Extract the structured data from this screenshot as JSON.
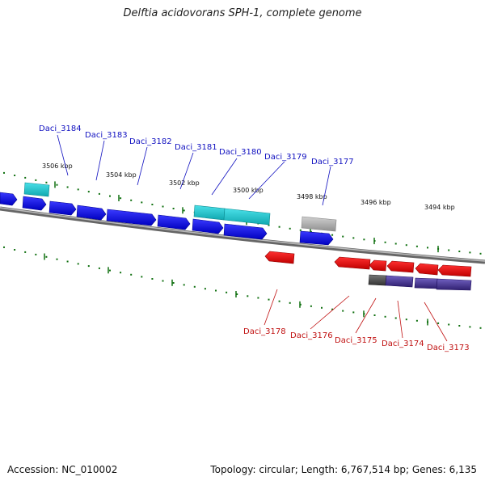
{
  "title": "Delftia acidovorans SPH-1, complete genome",
  "accession": "Accession: NC_010002",
  "topology": "Topology: circular; Length: 6,767,514 bp; Genes: 6,135",
  "kbp_ticks": [
    "3506 kbp",
    "3504 kbp",
    "3502 kbp",
    "3500 kbp",
    "3498 kbp",
    "3496 kbp",
    "3494 kbp"
  ],
  "top_labels": [
    "Daci_3184",
    "Daci_3183",
    "Daci_3182",
    "Daci_3181",
    "Daci_3180",
    "Daci_3179",
    "Daci_3177"
  ],
  "bottom_labels": [
    "Daci_3178",
    "Daci_3176",
    "Daci_3175",
    "Daci_3174",
    "Daci_3173"
  ],
  "colors": {
    "forward_cds": "#0a0aee",
    "reverse_cds": "#ee1010",
    "rna_cyan": "#18c8d0",
    "pseudo_gray": "#a8a8a8",
    "dark_gray": "#555555",
    "purple": "#4a3a98",
    "tick_green": "#107010",
    "backbone": "#808080"
  }
}
